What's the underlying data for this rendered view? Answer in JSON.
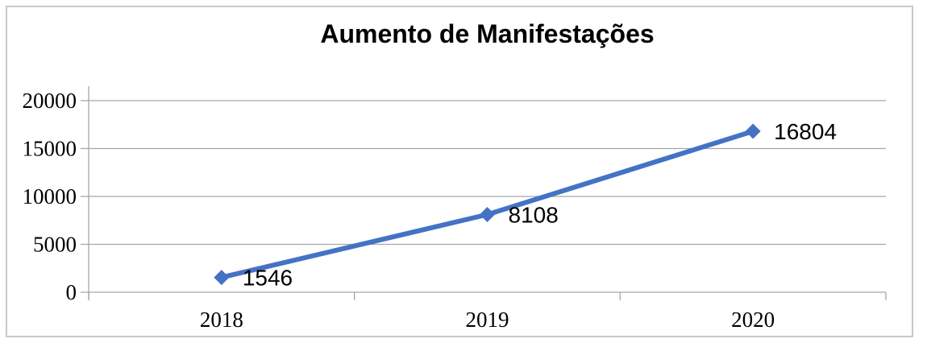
{
  "chart_data": {
    "type": "line",
    "title": "Aumento de Manifestações",
    "categories": [
      "2018",
      "2019",
      "2020"
    ],
    "values": [
      1546,
      8108,
      16804
    ],
    "data_labels": [
      "1546",
      "8108",
      "16804"
    ],
    "y_ticks": [
      0,
      5000,
      10000,
      15000,
      20000
    ],
    "ylim": [
      0,
      20000
    ],
    "grid": "horizontal-only",
    "legend": "none",
    "marker": "diamond",
    "colors": {
      "line": "#4472C4",
      "marker": "#4472C4",
      "gridline": "#A6A6A6",
      "axis": "#A6A6A6",
      "text": "#000000",
      "frame_border": "#C9C9C9",
      "background": "#FFFFFF"
    }
  }
}
